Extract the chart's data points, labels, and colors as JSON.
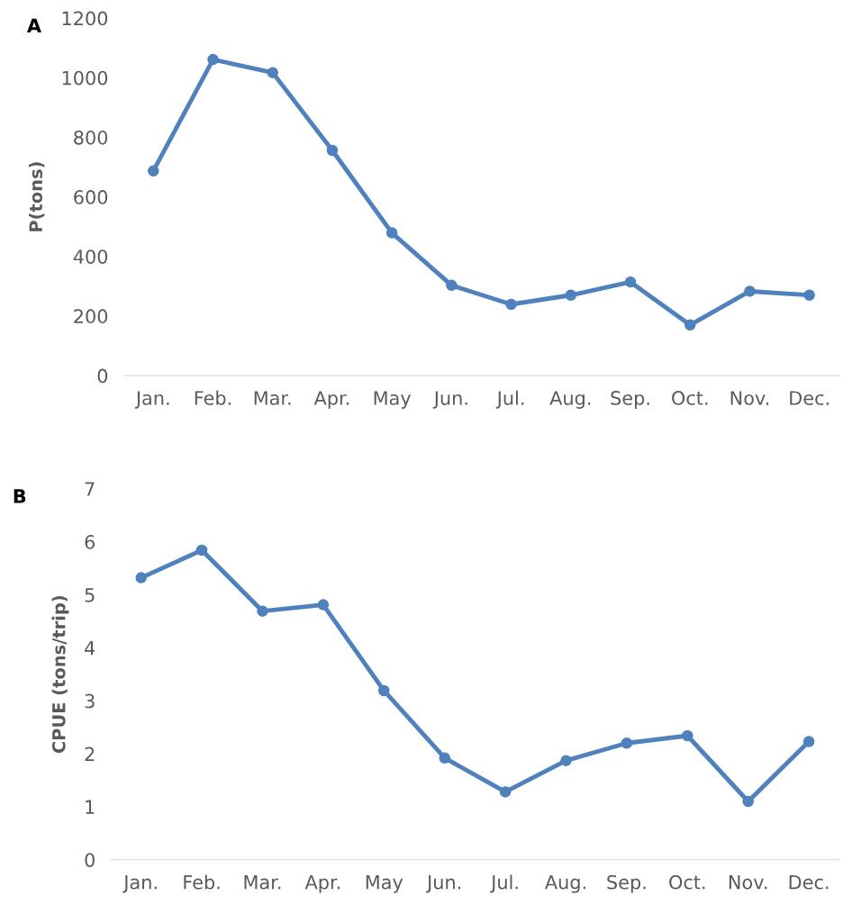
{
  "chart_data": [
    {
      "type": "line",
      "ylabel": "P(tons)",
      "annotations": [
        "A"
      ],
      "categories": [
        "Jan.",
        "Feb.",
        "Mar.",
        "Apr.",
        "May",
        "Jun.",
        "Jul.",
        "Aug.",
        "Sep.",
        "Oct.",
        "Nov.",
        "Dec."
      ],
      "series": [
        {
          "color": "#4f81bd",
          "values": [
            687,
            1061,
            1017,
            756,
            479,
            303,
            239,
            270,
            314,
            170,
            283,
            270
          ]
        }
      ],
      "ylim": [
        0,
        1200
      ],
      "yticks": [
        0,
        200,
        400,
        600,
        800,
        1000,
        1200
      ],
      "grid": false,
      "legend": false,
      "marker": "circle",
      "line_style": "solid"
    },
    {
      "type": "line",
      "ylabel": "CPUE (tons/trip)",
      "annotations": [
        "B"
      ],
      "categories": [
        "Jan.",
        "Feb.",
        "Mar.",
        "Apr.",
        "May",
        "Jun.",
        "Jul.",
        "Aug.",
        "Sep.",
        "Oct.",
        "Nov.",
        "Dec."
      ],
      "series": [
        {
          "color": "#4f81bd",
          "values": [
            5.32,
            5.84,
            4.69,
            4.81,
            3.19,
            1.92,
            1.28,
            1.87,
            2.2,
            2.34,
            1.1,
            2.23
          ]
        }
      ],
      "ylim": [
        0,
        7
      ],
      "yticks": [
        0,
        1,
        2,
        3,
        4,
        5,
        6,
        7
      ],
      "grid": false,
      "legend": false,
      "marker": "circle",
      "line_style": "solid"
    }
  ]
}
